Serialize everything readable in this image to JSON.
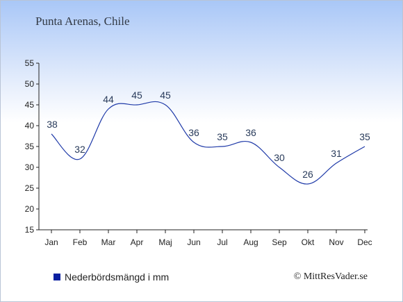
{
  "title": "Punta Arenas, Chile",
  "credit": "© MittResVader.se",
  "colors": {
    "line": "#1f3aa8",
    "swatch": "#0a1fa0",
    "axis": "#222222"
  },
  "chart_data": {
    "type": "line",
    "categories": [
      "Jan",
      "Feb",
      "Mar",
      "Apr",
      "Maj",
      "Jun",
      "Jul",
      "Aug",
      "Sep",
      "Okt",
      "Nov",
      "Dec"
    ],
    "series": [
      {
        "name": "Nederbördsmängd i mm",
        "values": [
          38,
          32,
          44,
          45,
          45,
          36,
          35,
          36,
          30,
          26,
          31,
          35
        ]
      }
    ],
    "ylim": [
      15,
      55
    ],
    "yticks": [
      15,
      20,
      25,
      30,
      35,
      40,
      45,
      50,
      55
    ],
    "grid": false,
    "legend": "bottom-left"
  }
}
